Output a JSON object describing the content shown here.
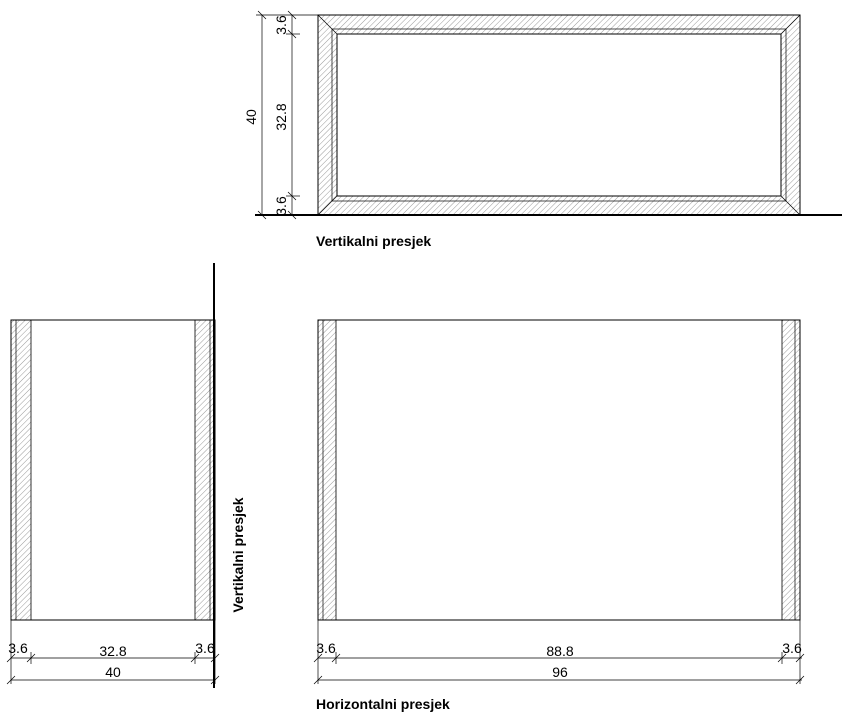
{
  "vertical_section": {
    "caption": "Vertikalni presjek",
    "dims": {
      "top": "3.6",
      "inner": "32.8",
      "bottom": "3.6",
      "total": "40"
    }
  },
  "side_section": {
    "caption": "Vertikalni presjek",
    "dims": {
      "left": "3.6",
      "inner": "32.8",
      "right": "3.6",
      "total": "40"
    }
  },
  "horizontal_section": {
    "caption": "Horizontalni presjek",
    "dims": {
      "left": "3.6",
      "inner": "88.8",
      "right": "3.6",
      "total": "96"
    }
  },
  "colors": {
    "line": "#000000",
    "hatch": "#555555",
    "background": "#ffffff"
  }
}
